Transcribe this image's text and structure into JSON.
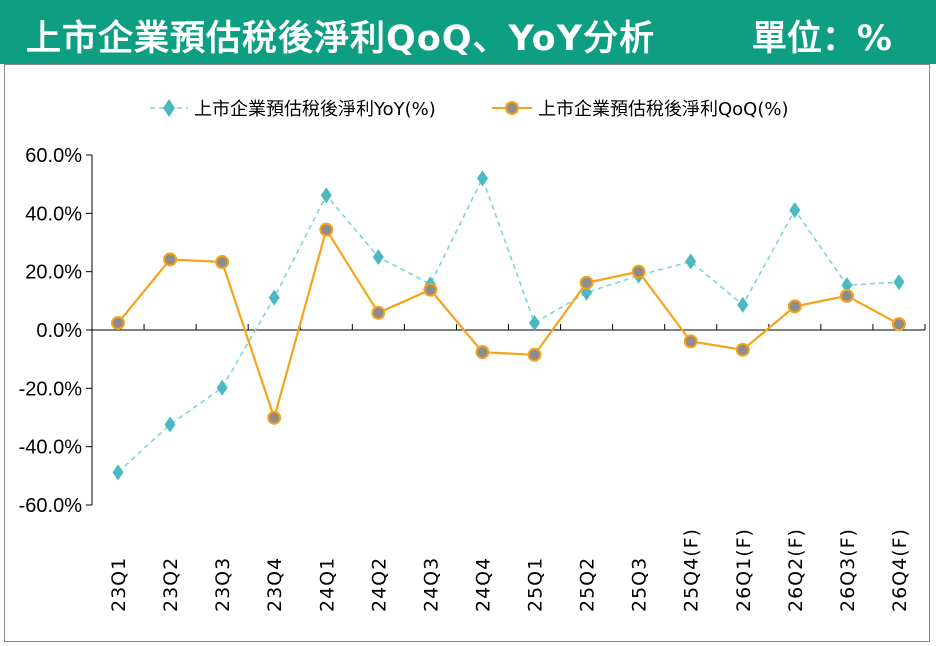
{
  "header": {
    "title": "上市企業預估稅後淨利QoQ、YoY分析",
    "unit": "單位：%"
  },
  "colors": {
    "header_bg": "#0e9f83",
    "yoy": "#7fd3d8",
    "yoy_marker": "#4cb8c2",
    "qoq": "#f5a31a",
    "qoq_marker_fill": "#8c8c8c"
  },
  "chart_data": {
    "type": "line",
    "title": "上市企業預估稅後淨利QoQ、YoY分析",
    "unit": "%",
    "categories": [
      "23Q1",
      "23Q2",
      "23Q3",
      "23Q4",
      "24Q1",
      "24Q2",
      "24Q3",
      "24Q4",
      "25Q1",
      "25Q2",
      "25Q3",
      "25Q4(F)",
      "26Q1(F)",
      "26Q2(F)",
      "26Q3(F)",
      "26Q4(F)"
    ],
    "series": [
      {
        "name": "上市企業預估稅後淨利YoY(%)",
        "style": "dashed-diamond",
        "values": [
          -48.8,
          -32.4,
          -19.8,
          11.1,
          46.2,
          25.0,
          15.7,
          52.0,
          2.4,
          12.8,
          18.7,
          23.5,
          8.6,
          41.1,
          15.4,
          16.4
        ]
      },
      {
        "name": "上市企業預估稅後淨利QoQ(%)",
        "style": "solid-circle",
        "values": [
          2.4,
          24.2,
          23.3,
          -30.1,
          34.4,
          5.9,
          13.8,
          -7.6,
          -8.5,
          16.2,
          20.0,
          -3.9,
          -6.8,
          8.1,
          11.7,
          2.0
        ]
      }
    ],
    "yticks": [
      "60.0%",
      "40.0%",
      "20.0%",
      "0.0%",
      "-20.0%",
      "-40.0%",
      "-60.0%"
    ],
    "ylim": [
      -60,
      60
    ],
    "legend": "top"
  }
}
